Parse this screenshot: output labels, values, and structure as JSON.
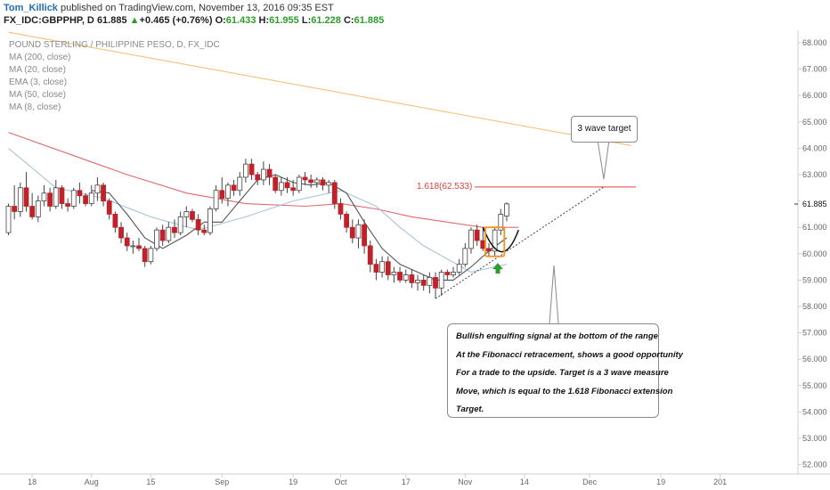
{
  "header": {
    "author": "Tom_Killick",
    "published": " published on TradingView.com, November 13, 2016 09:35 EST",
    "symbol": "FX_IDC:GBPPHP, D",
    "last": "61.885",
    "change": "+0.465 (+0.76%)",
    "open_label": "O:",
    "open": "61.433",
    "high_label": "H:",
    "high": "61.955",
    "low_label": "L:",
    "low": "61.228",
    "close_label": "C:",
    "close": "61.885",
    "up_arrow": "▲"
  },
  "indicators": {
    "title": "POUND STERLING / PHILIPPINE PESO, D, FX_IDC",
    "items": [
      "MA (200, close)",
      "MA (20, close)",
      "EMA (3, close)",
      "MA (50, close)",
      "MA (8, close)"
    ]
  },
  "annotations": {
    "target_label": "3 wave target",
    "fib_label": "1.618(62.533)",
    "note_lines": [
      "Bullish engulfing signal at the bottom of the range",
      "At the Fibonacci retracement, shows a good opportunity",
      "For a trade to the upside. Target is a 3 wave measure",
      "Move, which is equal to the 1.618 Fibonacci extension",
      "Target."
    ]
  },
  "colors": {
    "bull": "#ffffff",
    "bear": "#c0222a",
    "wick": "#444444",
    "ma200": "#f5c27a",
    "ma50": "#e06a6a",
    "ma20": "#a8c4d8",
    "ma8": "#555555",
    "fib": "#e04040",
    "up": "#2e9c2e"
  },
  "chart_data": {
    "type": "candlestick",
    "title": "POUND STERLING / PHILIPPINE PESO, D, FX_IDC",
    "last_price": 61.885,
    "y_ticks": [
      "68.000",
      "67.000",
      "66.000",
      "65.000",
      "64.000",
      "63.000",
      "62.000",
      "61.000",
      "60.000",
      "59.000",
      "58.000",
      "57.000",
      "56.000",
      "55.000",
      "54.000",
      "53.000",
      "52.000"
    ],
    "ylim": [
      52,
      68
    ],
    "x_ticks": [
      {
        "label": "18",
        "i": 4
      },
      {
        "label": "Aug",
        "i": 14
      },
      {
        "label": "15",
        "i": 24
      },
      {
        "label": "Sep",
        "i": 36
      },
      {
        "label": "19",
        "i": 48
      },
      {
        "label": "Oct",
        "i": 56
      },
      {
        "label": "17",
        "i": 67
      },
      {
        "label": "Nov",
        "i": 77
      },
      {
        "label": "14",
        "i": 87
      },
      {
        "label": "Dec",
        "i": 98
      },
      {
        "label": "19",
        "i": 110
      },
      {
        "label": "201",
        "i": 120
      }
    ],
    "fib_level": 62.533,
    "candles": [
      [
        60.8,
        61.9,
        60.7,
        61.8
      ],
      [
        61.8,
        62.6,
        61.3,
        61.6
      ],
      [
        61.6,
        62.7,
        61.4,
        62.5
      ],
      [
        62.5,
        63.1,
        61.6,
        61.8
      ],
      [
        61.8,
        62.3,
        61.3,
        61.4
      ],
      [
        61.4,
        62.2,
        61.2,
        62.0
      ],
      [
        62.0,
        62.6,
        61.8,
        62.3
      ],
      [
        62.3,
        62.5,
        61.6,
        61.8
      ],
      [
        61.8,
        62.8,
        61.7,
        62.5
      ],
      [
        62.5,
        62.6,
        61.7,
        61.9
      ],
      [
        61.9,
        62.1,
        61.6,
        61.8
      ],
      [
        61.8,
        62.5,
        61.7,
        62.4
      ],
      [
        62.4,
        62.7,
        61.9,
        62.2
      ],
      [
        62.2,
        62.3,
        61.8,
        61.9
      ],
      [
        61.9,
        62.6,
        61.8,
        62.3
      ],
      [
        62.3,
        62.9,
        62.0,
        62.6
      ],
      [
        62.6,
        62.7,
        61.8,
        62.0
      ],
      [
        62.0,
        62.1,
        61.3,
        61.5
      ],
      [
        61.5,
        61.6,
        60.8,
        61.0
      ],
      [
        61.0,
        61.2,
        60.4,
        60.6
      ],
      [
        60.6,
        60.8,
        60.1,
        60.3
      ],
      [
        60.3,
        60.5,
        60.0,
        60.3
      ],
      [
        60.3,
        60.6,
        60.1,
        60.2
      ],
      [
        60.2,
        60.3,
        59.5,
        59.7
      ],
      [
        59.7,
        60.3,
        59.6,
        60.2
      ],
      [
        60.2,
        61.0,
        60.1,
        60.9
      ],
      [
        60.9,
        61.1,
        60.3,
        60.5
      ],
      [
        60.5,
        61.2,
        60.4,
        61.0
      ],
      [
        61.0,
        61.3,
        60.6,
        60.8
      ],
      [
        60.8,
        61.6,
        60.7,
        61.4
      ],
      [
        61.4,
        61.8,
        61.0,
        61.6
      ],
      [
        61.6,
        61.7,
        61.2,
        61.3
      ],
      [
        61.3,
        61.5,
        60.7,
        60.9
      ],
      [
        60.9,
        61.1,
        60.7,
        60.8
      ],
      [
        60.8,
        61.8,
        60.7,
        61.7
      ],
      [
        61.7,
        62.6,
        61.6,
        62.4
      ],
      [
        62.4,
        62.9,
        61.9,
        62.1
      ],
      [
        62.1,
        62.7,
        61.8,
        62.6
      ],
      [
        62.6,
        62.8,
        62.2,
        62.4
      ],
      [
        62.4,
        63.1,
        62.2,
        62.9
      ],
      [
        62.9,
        63.6,
        62.7,
        63.4
      ],
      [
        63.4,
        63.6,
        62.8,
        63.0
      ],
      [
        63.0,
        63.1,
        62.6,
        62.8
      ],
      [
        62.8,
        63.5,
        62.6,
        63.2
      ],
      [
        63.2,
        63.4,
        62.6,
        62.9
      ],
      [
        62.9,
        63.0,
        62.3,
        62.4
      ],
      [
        62.4,
        62.9,
        62.2,
        62.7
      ],
      [
        62.7,
        62.9,
        62.3,
        62.5
      ],
      [
        62.5,
        62.8,
        62.2,
        62.4
      ],
      [
        62.4,
        63.0,
        62.3,
        62.9
      ],
      [
        62.9,
        63.1,
        62.6,
        62.8
      ],
      [
        62.8,
        63.0,
        62.5,
        62.7
      ],
      [
        62.7,
        62.9,
        62.5,
        62.8
      ],
      [
        62.8,
        62.9,
        62.4,
        62.6
      ],
      [
        62.6,
        62.8,
        62.3,
        62.7
      ],
      [
        62.7,
        62.8,
        61.7,
        61.9
      ],
      [
        61.9,
        62.1,
        61.3,
        61.5
      ],
      [
        61.5,
        61.6,
        60.8,
        61.0
      ],
      [
        61.0,
        61.3,
        60.4,
        60.6
      ],
      [
        60.6,
        61.3,
        60.2,
        61.1
      ],
      [
        61.1,
        61.3,
        60.0,
        60.3
      ],
      [
        60.3,
        60.5,
        59.3,
        59.6
      ],
      [
        59.6,
        59.8,
        59.0,
        59.3
      ],
      [
        59.3,
        59.9,
        59.1,
        59.7
      ],
      [
        59.7,
        59.9,
        59.0,
        59.2
      ],
      [
        59.2,
        59.5,
        58.9,
        59.3
      ],
      [
        59.3,
        59.5,
        58.9,
        59.0
      ],
      [
        59.0,
        59.4,
        58.9,
        59.2
      ],
      [
        59.2,
        59.4,
        58.7,
        58.9
      ],
      [
        58.9,
        59.2,
        58.6,
        59.0
      ],
      [
        59.0,
        59.2,
        58.6,
        58.8
      ],
      [
        58.8,
        59.3,
        58.5,
        59.1
      ],
      [
        59.1,
        59.3,
        58.3,
        58.7
      ],
      [
        58.7,
        59.4,
        58.4,
        59.3
      ],
      [
        59.3,
        59.4,
        59.0,
        59.2
      ],
      [
        59.2,
        59.5,
        59.1,
        59.3
      ],
      [
        59.3,
        59.8,
        59.2,
        59.6
      ],
      [
        59.6,
        60.4,
        59.5,
        60.2
      ],
      [
        60.2,
        61.0,
        60.0,
        60.9
      ],
      [
        60.9,
        61.1,
        60.3,
        60.5
      ],
      [
        60.5,
        61.0,
        60.1,
        60.2
      ],
      [
        60.2,
        60.4,
        59.9,
        60.1
      ],
      [
        60.1,
        61.0,
        59.9,
        60.9
      ],
      [
        60.9,
        61.7,
        60.7,
        61.5
      ],
      [
        61.43,
        61.95,
        61.23,
        61.89
      ]
    ],
    "series": [
      {
        "name": "MA (200, close)",
        "x": [
          0,
          105
        ],
        "y": [
          68.4,
          64.1
        ]
      },
      {
        "name": "MA (50, close)",
        "x": [
          0,
          10,
          20,
          30,
          40,
          50,
          56,
          62,
          68,
          74,
          80,
          86
        ],
        "y": [
          64.6,
          63.8,
          63.0,
          62.3,
          61.9,
          61.8,
          61.9,
          61.7,
          61.4,
          61.2,
          61.0,
          61.0
        ]
      },
      {
        "name": "MA (20, close)",
        "x": [
          0,
          8,
          16,
          24,
          32,
          40,
          48,
          56,
          62,
          66,
          70,
          74,
          78,
          84
        ],
        "y": [
          64.0,
          62.5,
          62.1,
          61.4,
          60.9,
          61.4,
          62.0,
          62.4,
          61.8,
          61.0,
          60.3,
          59.8,
          59.3,
          59.6
        ]
      },
      {
        "name": "MA (8, close)",
        "x": [
          14,
          17,
          20,
          23,
          26,
          30,
          33,
          36,
          39,
          42,
          45,
          48,
          51,
          54,
          57,
          60,
          63,
          66,
          69,
          72,
          75,
          78,
          81,
          84
        ],
        "y": [
          62.4,
          62.3,
          61.5,
          60.6,
          60.2,
          60.7,
          61.2,
          61.2,
          62.0,
          62.8,
          63.0,
          62.7,
          62.6,
          62.7,
          62.3,
          61.2,
          60.2,
          59.6,
          59.3,
          59.0,
          59.0,
          59.5,
          60.1,
          60.6
        ]
      }
    ]
  }
}
